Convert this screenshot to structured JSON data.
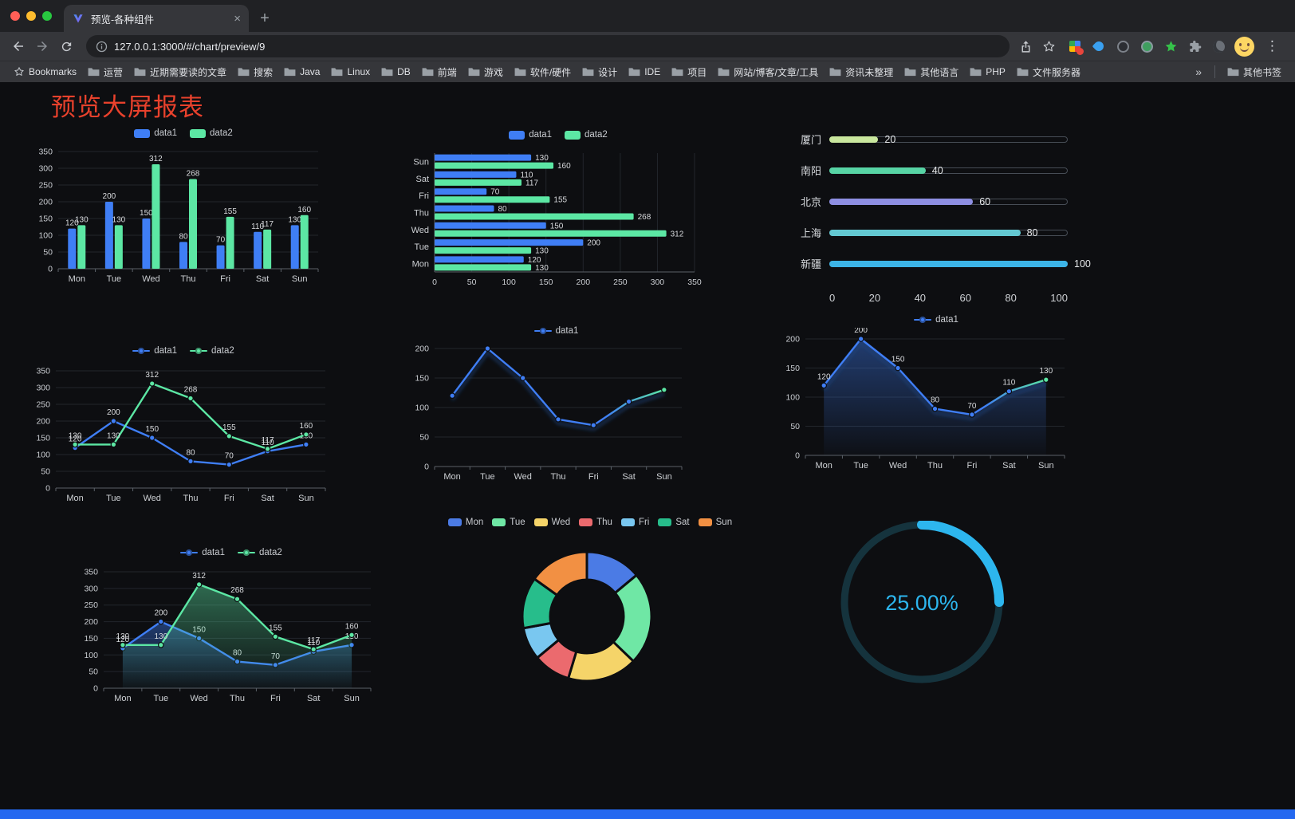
{
  "browser": {
    "tab_title": "预览-各种组件",
    "url": "127.0.0.1:3000/#/chart/preview/9",
    "icons": {
      "close_tab": "×",
      "new_tab": "+",
      "menu": "⋮",
      "overflow": "»"
    },
    "bookmarks_bar": {
      "first_label": "Bookmarks",
      "folders": [
        "运营",
        "近期需要读的文章",
        "搜索",
        "Java",
        "Linux",
        "DB",
        "前端",
        "游戏",
        "软件/硬件",
        "设计",
        "IDE",
        "项目",
        "网站/博客/文章/工具",
        "资讯未整理",
        "其他语言",
        "PHP",
        "文件服务器"
      ],
      "other_bookmarks": "其他书签"
    }
  },
  "page": {
    "title": "预览大屏报表",
    "title_color": "#e8412c",
    "background": "#0d0e11",
    "footer_color": "#2468f0"
  },
  "chart_data": [
    {
      "id": "bar-vertical",
      "type": "bar",
      "categories": [
        "Mon",
        "Tue",
        "Wed",
        "Thu",
        "Fri",
        "Sat",
        "Sun"
      ],
      "series": [
        {
          "name": "data1",
          "color": "#3f7ef5",
          "values": [
            120,
            200,
            150,
            80,
            70,
            110,
            130
          ]
        },
        {
          "name": "data2",
          "color": "#5ce7a4",
          "values": [
            130,
            130,
            312,
            268,
            155,
            117,
            160
          ]
        }
      ],
      "ylim": [
        0,
        350
      ],
      "ytick": 50,
      "value_labels": true,
      "legend_position": "top",
      "grid": true
    },
    {
      "id": "bar-horizontal",
      "type": "bar-horizontal",
      "categories": [
        "Mon",
        "Tue",
        "Wed",
        "Thu",
        "Fri",
        "Sat",
        "Sun"
      ],
      "display_order": [
        "Sun",
        "Sat",
        "Fri",
        "Thu",
        "Wed",
        "Tue",
        "Mon"
      ],
      "series": [
        {
          "name": "data1",
          "color": "#3f7ef5",
          "values": [
            120,
            200,
            150,
            80,
            70,
            110,
            130
          ]
        },
        {
          "name": "data2",
          "color": "#5ce7a4",
          "values": [
            130,
            130,
            312,
            268,
            155,
            117,
            160
          ]
        }
      ],
      "xlim": [
        0,
        350
      ],
      "xtick": 50,
      "value_labels": true,
      "legend_position": "top",
      "grid": true
    },
    {
      "id": "city-progress",
      "type": "progress",
      "max": 100,
      "items": [
        {
          "label": "厦门",
          "value": 20,
          "color": "#c9e79e"
        },
        {
          "label": "南阳",
          "value": 40,
          "color": "#57d4a5"
        },
        {
          "label": "北京",
          "value": 60,
          "color": "#8e8fe3"
        },
        {
          "label": "上海",
          "value": 80,
          "color": "#63c8d2"
        },
        {
          "label": "新疆",
          "value": 100,
          "color": "#3cb4e7"
        }
      ],
      "axis_ticks": [
        0,
        20,
        40,
        60,
        80,
        100
      ]
    },
    {
      "id": "line-two",
      "type": "line",
      "categories": [
        "Mon",
        "Tue",
        "Wed",
        "Thu",
        "Fri",
        "Sat",
        "Sun"
      ],
      "series": [
        {
          "name": "data1",
          "color": "#3f7ef5",
          "values": [
            120,
            200,
            150,
            80,
            70,
            110,
            130
          ]
        },
        {
          "name": "data2",
          "color": "#5ce7a4",
          "values": [
            130,
            130,
            312,
            268,
            155,
            117,
            160
          ]
        }
      ],
      "ylim": [
        0,
        350
      ],
      "ytick": 50,
      "value_labels": true,
      "area": false,
      "legend_position": "top",
      "grid": true
    },
    {
      "id": "line-single",
      "type": "line",
      "categories": [
        "Mon",
        "Tue",
        "Wed",
        "Thu",
        "Fri",
        "Sat",
        "Sun"
      ],
      "series": [
        {
          "name": "data1",
          "color": "#3f7ef5",
          "values": [
            120,
            200,
            150,
            80,
            70,
            110,
            130
          ]
        }
      ],
      "ylim": [
        0,
        200
      ],
      "ytick": 50,
      "value_labels": false,
      "area": false,
      "gradient_end": true,
      "end_color": "#5ce7a4",
      "shadow": true,
      "legend_position": "top",
      "grid": true
    },
    {
      "id": "line-area-single",
      "type": "line",
      "categories": [
        "Mon",
        "Tue",
        "Wed",
        "Thu",
        "Fri",
        "Sat",
        "Sun"
      ],
      "series": [
        {
          "name": "data1",
          "color": "#3f7ef5",
          "values": [
            120,
            200,
            150,
            80,
            70,
            110,
            130
          ]
        }
      ],
      "ylim": [
        0,
        200
      ],
      "ytick": 50,
      "value_labels": true,
      "area": true,
      "gradient_end": true,
      "end_color": "#5ce7a4",
      "shadow": true,
      "legend_position": "top",
      "grid": true
    },
    {
      "id": "line-area-two",
      "type": "line",
      "categories": [
        "Mon",
        "Tue",
        "Wed",
        "Thu",
        "Fri",
        "Sat",
        "Sun"
      ],
      "series": [
        {
          "name": "data1",
          "color": "#3f7ef5",
          "values": [
            120,
            200,
            150,
            80,
            70,
            110,
            130
          ]
        },
        {
          "name": "data2",
          "color": "#5ce7a4",
          "values": [
            130,
            130,
            312,
            268,
            155,
            117,
            160
          ]
        }
      ],
      "ylim": [
        0,
        350
      ],
      "ytick": 50,
      "value_labels": true,
      "area": true,
      "legend_position": "top",
      "grid": true
    },
    {
      "id": "donut",
      "type": "pie",
      "categories": [
        "Mon",
        "Tue",
        "Wed",
        "Thu",
        "Fri",
        "Sat",
        "Sun"
      ],
      "values": [
        120,
        200,
        150,
        80,
        70,
        110,
        130
      ],
      "colors": [
        "#4b7be5",
        "#6fe7a5",
        "#f5d469",
        "#eb6a6e",
        "#79c7f0",
        "#27bd8b",
        "#f29043"
      ],
      "donut": true,
      "legend_position": "top"
    },
    {
      "id": "gauge",
      "type": "gauge",
      "value": 25,
      "max": 100,
      "label": "25.00%",
      "color": "#2db6ee",
      "track_color": "#15333d"
    }
  ]
}
